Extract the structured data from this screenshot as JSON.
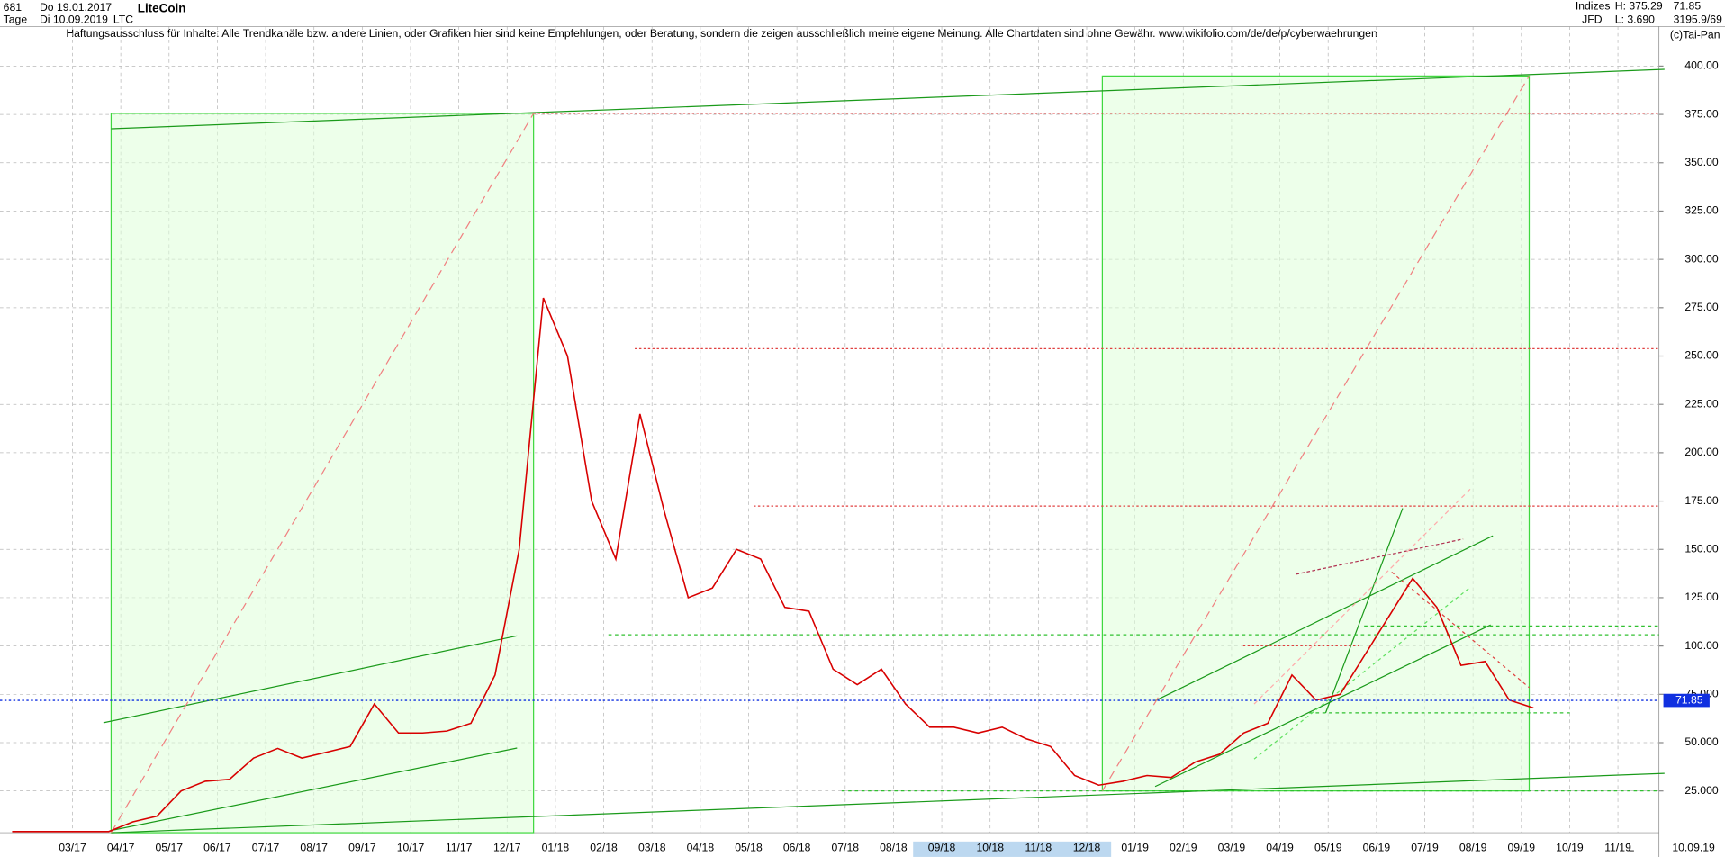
{
  "header": {
    "count": "681",
    "start": "Do 19.01.2017",
    "interval": "Tage",
    "end": "Di 10.09.2019",
    "name": "LiteCoin",
    "symbol": "LTC",
    "group": "Indizes",
    "source": "JFD",
    "high": "H: 375.29",
    "low": "L: 3.690",
    "ratio": "3195.9/69",
    "disclaimer": "Haftungsausschluss für Inhalte: Alle Trendkanäle bzw. andere Linien, oder Grafiken hier sind keine Empfehlungen, oder Beratung, sondern die zeigen ausschließlich meine eigene Meinung. Alle Chartdaten sind ohne Gewähr.  www.wikifolio.com/de/de/p/cyberwaehrungen",
    "copyright": "(c)Tai-Pan",
    "date_label": "10.09.19",
    "scale_label": "L"
  },
  "chart_data": {
    "type": "line",
    "categories": [
      null,
      null,
      null,
      "03/17",
      null,
      "04/17",
      null,
      "05/17",
      null,
      "06/17",
      null,
      "07/17",
      null,
      "08/17",
      null,
      "09/17",
      null,
      "10/17",
      null,
      "11/17",
      null,
      "12/17",
      null,
      "01/18",
      null,
      "02/18",
      null,
      "03/18",
      null,
      "04/18",
      null,
      "05/18",
      null,
      "06/18",
      null,
      "07/18",
      null,
      "08/18",
      null,
      "09/18",
      null,
      "10/18",
      null,
      "11/18",
      null,
      "12/18",
      null,
      "01/19",
      null,
      "02/19",
      null,
      "03/19",
      null,
      "04/19",
      null,
      "05/19",
      null,
      "06/19",
      null,
      "07/19",
      null,
      "08/19",
      null,
      "09/19",
      null,
      "10/19",
      null,
      "11/19",
      null
    ],
    "series": [
      {
        "name": "LTC",
        "color": "#d80000",
        "values": [
          4,
          4,
          4,
          4,
          4,
          9,
          12,
          25,
          30,
          31,
          42,
          47,
          42,
          45,
          48,
          70,
          55,
          55,
          56,
          60,
          85,
          150,
          280,
          250,
          175,
          145,
          220,
          170,
          125,
          130,
          150,
          145,
          120,
          118,
          88,
          80,
          88,
          70,
          58,
          58,
          55,
          58,
          52,
          48,
          33,
          28,
          30,
          33,
          32,
          40,
          44,
          55,
          60,
          85,
          72,
          75,
          95,
          115,
          135,
          120,
          90,
          92,
          72,
          68,
          null,
          null,
          null,
          null,
          null
        ]
      }
    ],
    "last_value": 71.85,
    "ylim": [
      3.4,
      420.5
    ],
    "yticks": [
      {
        "value": 25,
        "label": "25.000"
      },
      {
        "value": 50,
        "label": "50.000"
      },
      {
        "value": 75,
        "label": "75.000"
      },
      {
        "value": 100,
        "label": "100.00"
      },
      {
        "value": 125,
        "label": "125.00"
      },
      {
        "value": 150,
        "label": "150.00"
      },
      {
        "value": 175,
        "label": "175.00"
      },
      {
        "value": 200,
        "label": "200.00"
      },
      {
        "value": 225,
        "label": "225.00"
      },
      {
        "value": 250,
        "label": "250.00"
      },
      {
        "value": 275,
        "label": "275.00"
      },
      {
        "value": 300,
        "label": "300.00"
      },
      {
        "value": 325,
        "label": "325.00"
      },
      {
        "value": 350,
        "label": "350.00"
      },
      {
        "value": 375,
        "label": "375.00"
      },
      {
        "value": 400,
        "label": "400.00"
      }
    ],
    "grid": true
  }
}
